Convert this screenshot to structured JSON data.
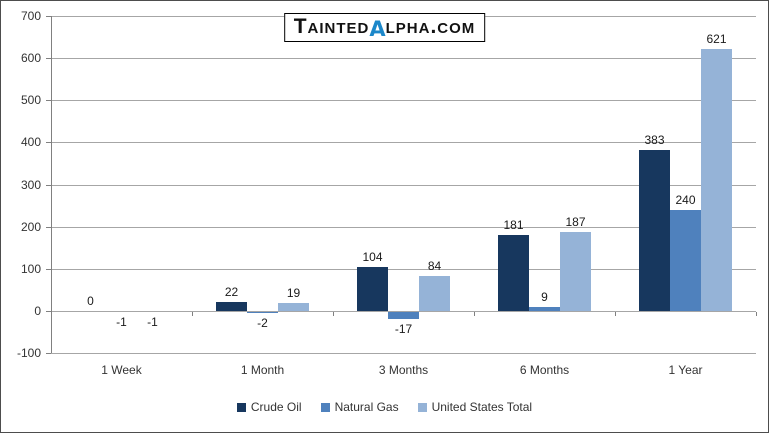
{
  "title": {
    "part1": "Tainted",
    "alpha": "α",
    "part2": "lpha.com",
    "alpha_color": "#1b87c9"
  },
  "chart_data": {
    "type": "bar",
    "categories": [
      "1 Week",
      "1 Month",
      "3 Months",
      "6 Months",
      "1 Year"
    ],
    "series": [
      {
        "name": "Crude Oil",
        "color": "#17375E",
        "values": [
          0,
          22,
          104,
          181,
          383
        ]
      },
      {
        "name": "Natural Gas",
        "color": "#4F81BD",
        "values": [
          -1,
          -2,
          -17,
          9,
          240
        ]
      },
      {
        "name": "United States Total",
        "color": "#95B3D7",
        "values": [
          -1,
          19,
          84,
          187,
          621
        ]
      }
    ],
    "ylim": [
      -100,
      700
    ],
    "ytick_step": 100,
    "ytick_labels": [
      "-100",
      "0",
      "100",
      "200",
      "300",
      "400",
      "500",
      "600",
      "700"
    ],
    "grid": true,
    "legend_position": "bottom",
    "gridline_color": "#a6a6a6",
    "axis_color": "#808080"
  }
}
